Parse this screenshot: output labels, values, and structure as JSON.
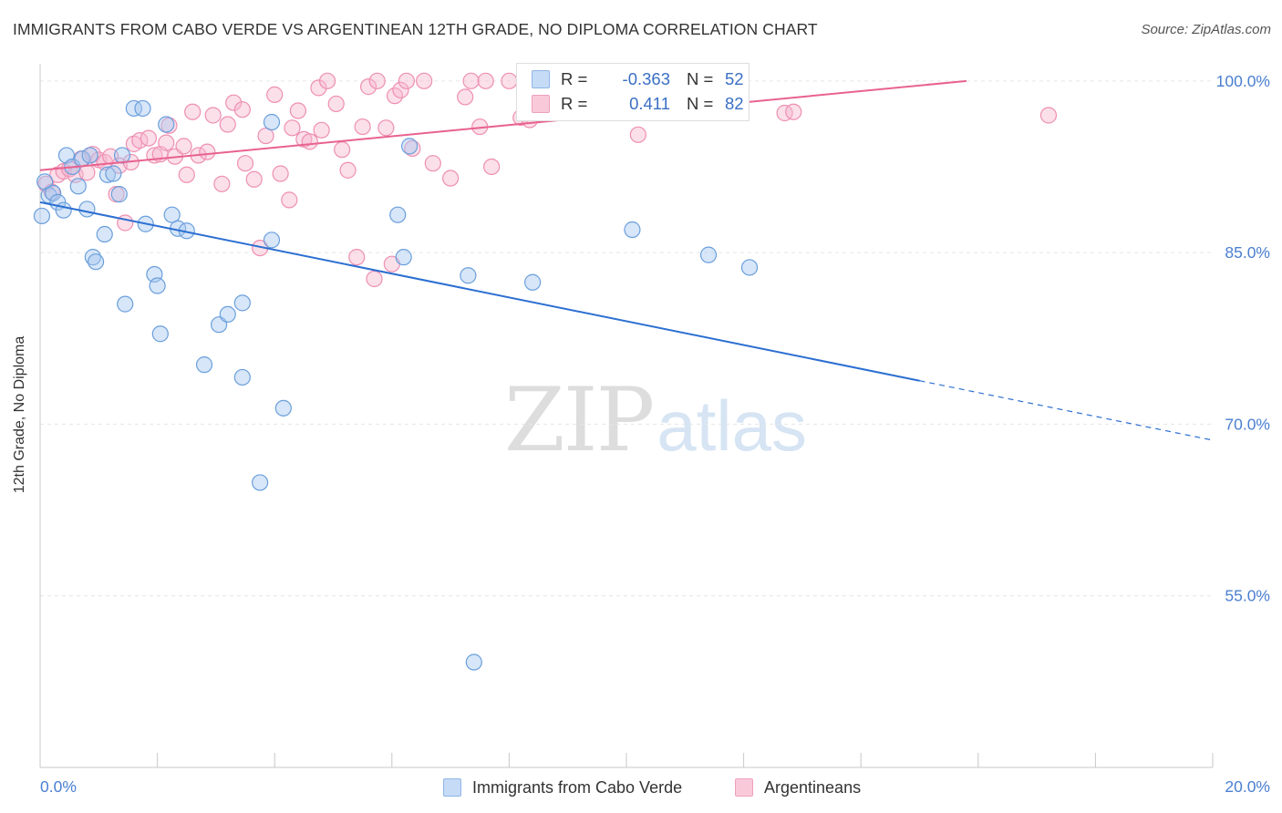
{
  "title": "IMMIGRANTS FROM CABO VERDE VS ARGENTINEAN 12TH GRADE, NO DIPLOMA CORRELATION CHART",
  "source": "Source: ZipAtlas.com",
  "watermark": {
    "zip": "ZIP",
    "atlas": "atlas"
  },
  "legend": {
    "rows": [
      {
        "r_label": "R =",
        "r_value": "-0.363",
        "n_label": "N =",
        "n_value": "52"
      },
      {
        "r_label": "R =",
        "r_value": "0.411",
        "n_label": "N =",
        "n_value": "82"
      }
    ]
  },
  "chart_data": {
    "type": "scatter",
    "title": "IMMIGRANTS FROM CABO VERDE VS ARGENTINEAN 12TH GRADE, NO DIPLOMA CORRELATION CHART",
    "xlabel": "",
    "ylabel": "12th Grade, No Diploma",
    "xlim": [
      0,
      20
    ],
    "ylim": [
      40,
      101.5
    ],
    "x_tick_labels": [
      "0.0%",
      "20.0%"
    ],
    "y_ticks": [
      100,
      85,
      70,
      55
    ],
    "y_tick_labels": [
      "100.0%",
      "85.0%",
      "70.0%",
      "55.0%"
    ],
    "grid": true,
    "legend_position": "bottom",
    "colors": {
      "series1": "#6a9fdc",
      "series2": "#ee8fb2",
      "line1": "#2c6fd1",
      "line2": "#e8628f"
    },
    "series": [
      {
        "name": "Immigrants from Cabo Verde",
        "color": "#6a9fdc",
        "trend": {
          "x0": 0,
          "y0": 89.4,
          "x1": 15,
          "y1": 73.8,
          "dash_to_x": 20
        },
        "points": [
          [
            0.03,
            88.2
          ],
          [
            0.08,
            91.2
          ],
          [
            0.15,
            90.0
          ],
          [
            0.22,
            90.2
          ],
          [
            0.3,
            89.4
          ],
          [
            0.4,
            88.7
          ],
          [
            0.45,
            93.5
          ],
          [
            0.55,
            92.5
          ],
          [
            0.65,
            90.8
          ],
          [
            0.72,
            93.2
          ],
          [
            0.8,
            88.8
          ],
          [
            0.85,
            93.5
          ],
          [
            0.9,
            84.6
          ],
          [
            0.95,
            84.2
          ],
          [
            1.1,
            86.6
          ],
          [
            1.15,
            91.8
          ],
          [
            1.25,
            91.9
          ],
          [
            1.35,
            90.1
          ],
          [
            1.4,
            93.5
          ],
          [
            1.45,
            80.5
          ],
          [
            1.6,
            97.6
          ],
          [
            1.75,
            97.6
          ],
          [
            1.8,
            87.5
          ],
          [
            1.95,
            83.1
          ],
          [
            2.0,
            82.1
          ],
          [
            2.05,
            77.9
          ],
          [
            2.15,
            96.2
          ],
          [
            2.25,
            88.3
          ],
          [
            2.35,
            87.1
          ],
          [
            2.5,
            86.9
          ],
          [
            2.8,
            75.2
          ],
          [
            3.05,
            78.7
          ],
          [
            3.2,
            79.6
          ],
          [
            3.45,
            80.6
          ],
          [
            3.45,
            74.1
          ],
          [
            3.75,
            64.9
          ],
          [
            3.95,
            86.1
          ],
          [
            3.95,
            96.4
          ],
          [
            4.15,
            71.4
          ],
          [
            6.1,
            88.3
          ],
          [
            6.2,
            84.6
          ],
          [
            6.3,
            94.3
          ],
          [
            7.3,
            83.0
          ],
          [
            7.4,
            49.2
          ],
          [
            8.4,
            82.4
          ],
          [
            10.1,
            87.0
          ],
          [
            11.4,
            84.8
          ],
          [
            12.1,
            83.7
          ]
        ]
      },
      {
        "name": "Argentineans",
        "color": "#ee8fb2",
        "trend": {
          "x0": 0,
          "y0": 92.2,
          "x1": 15.8,
          "y1": 100.0
        },
        "points": [
          [
            0.1,
            91.0
          ],
          [
            0.2,
            90.3
          ],
          [
            0.3,
            91.8
          ],
          [
            0.4,
            92.1
          ],
          [
            0.5,
            92.3
          ],
          [
            0.6,
            91.8
          ],
          [
            0.7,
            93.2
          ],
          [
            0.8,
            92.0
          ],
          [
            0.9,
            93.6
          ],
          [
            1.0,
            93.1
          ],
          [
            1.1,
            92.9
          ],
          [
            1.2,
            93.4
          ],
          [
            1.3,
            90.1
          ],
          [
            1.35,
            92.6
          ],
          [
            1.45,
            87.6
          ],
          [
            1.55,
            92.9
          ],
          [
            1.6,
            94.5
          ],
          [
            1.7,
            94.8
          ],
          [
            1.85,
            95.0
          ],
          [
            1.95,
            93.5
          ],
          [
            2.05,
            93.6
          ],
          [
            2.15,
            94.6
          ],
          [
            2.2,
            96.1
          ],
          [
            2.3,
            93.4
          ],
          [
            2.45,
            94.3
          ],
          [
            2.5,
            91.8
          ],
          [
            2.6,
            97.3
          ],
          [
            2.7,
            93.5
          ],
          [
            2.85,
            93.8
          ],
          [
            2.95,
            97.0
          ],
          [
            3.1,
            91.0
          ],
          [
            3.2,
            96.2
          ],
          [
            3.3,
            98.1
          ],
          [
            3.45,
            97.5
          ],
          [
            3.5,
            92.8
          ],
          [
            3.65,
            91.4
          ],
          [
            3.75,
            85.4
          ],
          [
            3.85,
            95.2
          ],
          [
            4.0,
            98.8
          ],
          [
            4.1,
            91.9
          ],
          [
            4.25,
            89.6
          ],
          [
            4.3,
            95.9
          ],
          [
            4.4,
            97.4
          ],
          [
            4.5,
            94.9
          ],
          [
            4.6,
            94.7
          ],
          [
            4.75,
            99.4
          ],
          [
            4.8,
            95.7
          ],
          [
            4.9,
            100.0
          ],
          [
            5.05,
            98.0
          ],
          [
            5.15,
            94.0
          ],
          [
            5.25,
            92.2
          ],
          [
            5.4,
            84.6
          ],
          [
            5.5,
            96.0
          ],
          [
            5.6,
            99.5
          ],
          [
            5.7,
            82.7
          ],
          [
            5.75,
            100.0
          ],
          [
            5.9,
            95.9
          ],
          [
            6.0,
            84.0
          ],
          [
            6.05,
            98.7
          ],
          [
            6.15,
            99.2
          ],
          [
            6.25,
            100.0
          ],
          [
            6.35,
            94.1
          ],
          [
            6.55,
            100.0
          ],
          [
            6.7,
            92.8
          ],
          [
            7.0,
            91.5
          ],
          [
            7.25,
            98.6
          ],
          [
            7.35,
            100.0
          ],
          [
            7.5,
            96.0
          ],
          [
            7.6,
            100.0
          ],
          [
            7.7,
            92.5
          ],
          [
            8.0,
            100.0
          ],
          [
            8.2,
            96.8
          ],
          [
            8.35,
            96.6
          ],
          [
            8.5,
            100.0
          ],
          [
            9.3,
            100.0
          ],
          [
            10.2,
            95.3
          ],
          [
            12.7,
            97.2
          ],
          [
            12.85,
            97.3
          ],
          [
            17.2,
            97.0
          ]
        ]
      }
    ]
  }
}
